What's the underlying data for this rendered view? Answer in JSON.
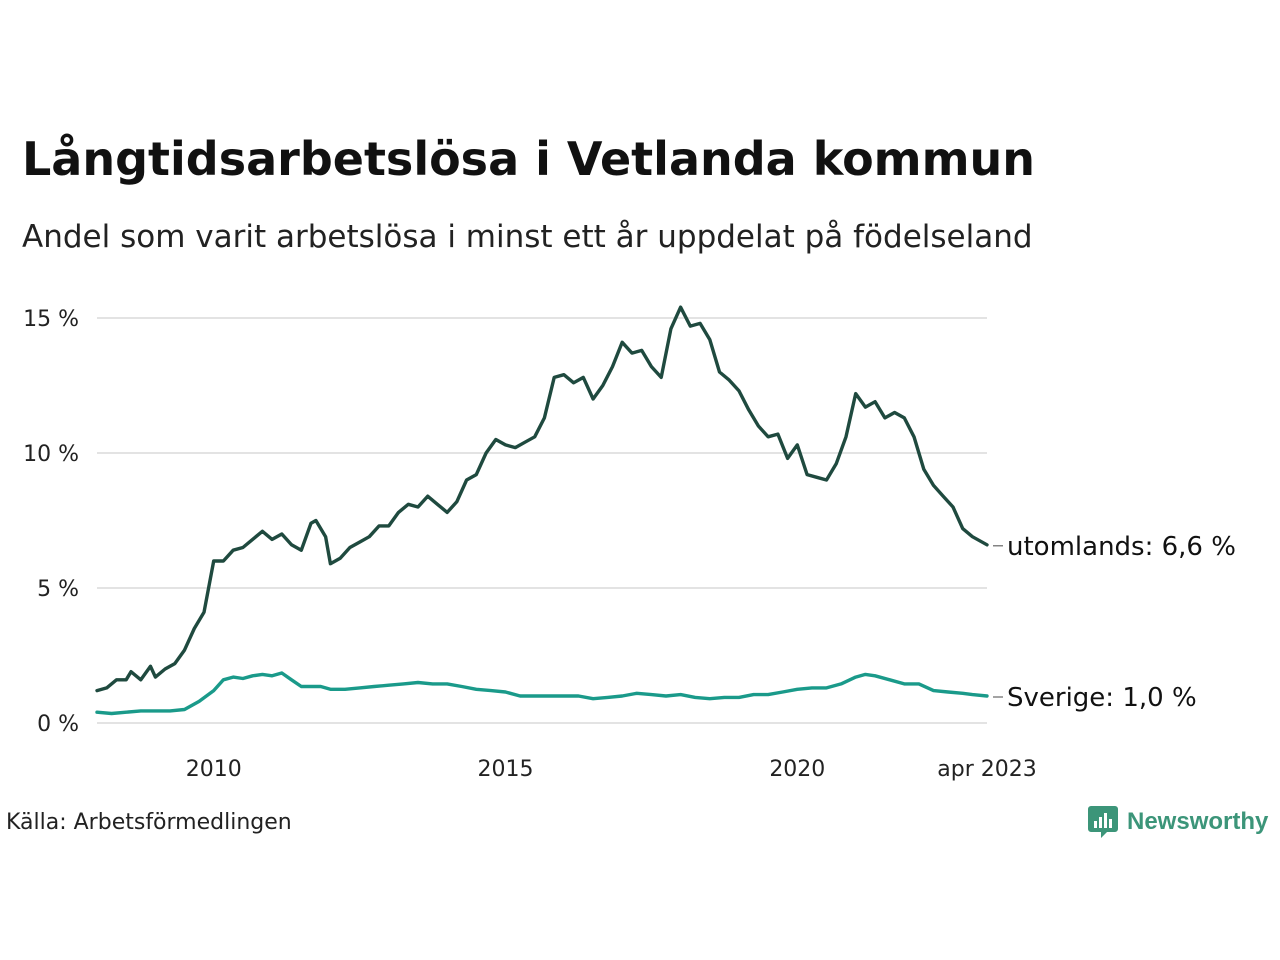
{
  "header": {
    "title": "Långtidsarbetslösa i Vetlanda kommun",
    "subtitle": "Andel som varit arbetslösa i minst ett år uppdelat på födelseland"
  },
  "footer": {
    "source": "Källa: Arbetsförmedlingen",
    "brand": "Newsworthy"
  },
  "colors": {
    "utomlands": "#1f4a3f",
    "sverige": "#1a9a8a",
    "grid": "#e3e3e3",
    "brand": "#3c9579"
  },
  "chart_data": {
    "type": "line",
    "title": "Långtidsarbetslösa i Vetlanda kommun",
    "subtitle": "Andel som varit arbetslösa i minst ett år uppdelat på födelseland",
    "xlabel": "",
    "ylabel": "",
    "x_range": [
      "2008-01",
      "2023-04"
    ],
    "ylim": [
      0,
      15
    ],
    "y_ticks": [
      0,
      5,
      10,
      15
    ],
    "y_tick_labels": [
      "0 %",
      "5 %",
      "10 %",
      "15 %"
    ],
    "x_ticks": [
      "2010-01",
      "2015-01",
      "2020-01",
      "2023-04"
    ],
    "x_tick_labels": [
      "2010",
      "2015",
      "2020",
      "apr 2023"
    ],
    "grid": "horizontal",
    "series": [
      {
        "key": "utomlands",
        "end_label": "utomlands: 6,6 %",
        "points": [
          [
            "2008-01",
            1.2
          ],
          [
            "2008-03",
            1.3
          ],
          [
            "2008-05",
            1.6
          ],
          [
            "2008-07",
            1.6
          ],
          [
            "2008-08",
            1.9
          ],
          [
            "2008-10",
            1.6
          ],
          [
            "2008-12",
            2.1
          ],
          [
            "2009-01",
            1.7
          ],
          [
            "2009-03",
            2.0
          ],
          [
            "2009-05",
            2.2
          ],
          [
            "2009-07",
            2.7
          ],
          [
            "2009-09",
            3.5
          ],
          [
            "2009-11",
            4.1
          ],
          [
            "2010-01",
            6.0
          ],
          [
            "2010-03",
            6.0
          ],
          [
            "2010-05",
            6.4
          ],
          [
            "2010-07",
            6.5
          ],
          [
            "2010-09",
            6.8
          ],
          [
            "2010-11",
            7.1
          ],
          [
            "2011-01",
            6.8
          ],
          [
            "2011-03",
            7.0
          ],
          [
            "2011-05",
            6.6
          ],
          [
            "2011-07",
            6.4
          ],
          [
            "2011-09",
            7.4
          ],
          [
            "2011-10",
            7.5
          ],
          [
            "2011-12",
            6.9
          ],
          [
            "2012-01",
            5.9
          ],
          [
            "2012-03",
            6.1
          ],
          [
            "2012-05",
            6.5
          ],
          [
            "2012-07",
            6.7
          ],
          [
            "2012-09",
            6.9
          ],
          [
            "2012-11",
            7.3
          ],
          [
            "2013-01",
            7.3
          ],
          [
            "2013-03",
            7.8
          ],
          [
            "2013-05",
            8.1
          ],
          [
            "2013-07",
            8.0
          ],
          [
            "2013-09",
            8.4
          ],
          [
            "2013-11",
            8.1
          ],
          [
            "2014-01",
            7.8
          ],
          [
            "2014-03",
            8.2
          ],
          [
            "2014-05",
            9.0
          ],
          [
            "2014-07",
            9.2
          ],
          [
            "2014-09",
            10.0
          ],
          [
            "2014-11",
            10.5
          ],
          [
            "2015-01",
            10.3
          ],
          [
            "2015-03",
            10.2
          ],
          [
            "2015-05",
            10.4
          ],
          [
            "2015-07",
            10.6
          ],
          [
            "2015-09",
            11.3
          ],
          [
            "2015-11",
            12.8
          ],
          [
            "2016-01",
            12.9
          ],
          [
            "2016-03",
            12.6
          ],
          [
            "2016-05",
            12.8
          ],
          [
            "2016-07",
            12.0
          ],
          [
            "2016-09",
            12.5
          ],
          [
            "2016-11",
            13.2
          ],
          [
            "2017-01",
            14.1
          ],
          [
            "2017-03",
            13.7
          ],
          [
            "2017-05",
            13.8
          ],
          [
            "2017-07",
            13.2
          ],
          [
            "2017-09",
            12.8
          ],
          [
            "2017-11",
            14.6
          ],
          [
            "2018-01",
            15.4
          ],
          [
            "2018-03",
            14.7
          ],
          [
            "2018-05",
            14.8
          ],
          [
            "2018-07",
            14.2
          ],
          [
            "2018-09",
            13.0
          ],
          [
            "2018-11",
            12.7
          ],
          [
            "2019-01",
            12.3
          ],
          [
            "2019-03",
            11.6
          ],
          [
            "2019-05",
            11.0
          ],
          [
            "2019-07",
            10.6
          ],
          [
            "2019-09",
            10.7
          ],
          [
            "2019-11",
            9.8
          ],
          [
            "2020-01",
            10.3
          ],
          [
            "2020-03",
            9.2
          ],
          [
            "2020-05",
            9.1
          ],
          [
            "2020-07",
            9.0
          ],
          [
            "2020-09",
            9.6
          ],
          [
            "2020-11",
            10.6
          ],
          [
            "2021-01",
            12.2
          ],
          [
            "2021-03",
            11.7
          ],
          [
            "2021-05",
            11.9
          ],
          [
            "2021-07",
            11.3
          ],
          [
            "2021-09",
            11.5
          ],
          [
            "2021-11",
            11.3
          ],
          [
            "2022-01",
            10.6
          ],
          [
            "2022-03",
            9.4
          ],
          [
            "2022-05",
            8.8
          ],
          [
            "2022-07",
            8.4
          ],
          [
            "2022-09",
            8.0
          ],
          [
            "2022-11",
            7.2
          ],
          [
            "2023-01",
            6.9
          ],
          [
            "2023-04",
            6.6
          ]
        ]
      },
      {
        "key": "sverige",
        "end_label": "Sverige: 1,0 %",
        "points": [
          [
            "2008-01",
            0.4
          ],
          [
            "2008-04",
            0.35
          ],
          [
            "2008-07",
            0.4
          ],
          [
            "2008-10",
            0.45
          ],
          [
            "2009-01",
            0.45
          ],
          [
            "2009-04",
            0.45
          ],
          [
            "2009-07",
            0.5
          ],
          [
            "2009-10",
            0.8
          ],
          [
            "2010-01",
            1.2
          ],
          [
            "2010-03",
            1.6
          ],
          [
            "2010-05",
            1.7
          ],
          [
            "2010-07",
            1.65
          ],
          [
            "2010-09",
            1.75
          ],
          [
            "2010-11",
            1.8
          ],
          [
            "2011-01",
            1.75
          ],
          [
            "2011-03",
            1.85
          ],
          [
            "2011-05",
            1.6
          ],
          [
            "2011-07",
            1.35
          ],
          [
            "2011-09",
            1.35
          ],
          [
            "2011-11",
            1.35
          ],
          [
            "2012-01",
            1.25
          ],
          [
            "2012-04",
            1.25
          ],
          [
            "2012-07",
            1.3
          ],
          [
            "2012-10",
            1.35
          ],
          [
            "2013-01",
            1.4
          ],
          [
            "2013-04",
            1.45
          ],
          [
            "2013-07",
            1.5
          ],
          [
            "2013-10",
            1.45
          ],
          [
            "2014-01",
            1.45
          ],
          [
            "2014-04",
            1.35
          ],
          [
            "2014-07",
            1.25
          ],
          [
            "2014-10",
            1.2
          ],
          [
            "2015-01",
            1.15
          ],
          [
            "2015-04",
            1.0
          ],
          [
            "2015-07",
            1.0
          ],
          [
            "2015-10",
            1.0
          ],
          [
            "2016-01",
            1.0
          ],
          [
            "2016-04",
            1.0
          ],
          [
            "2016-07",
            0.9
          ],
          [
            "2016-10",
            0.95
          ],
          [
            "2017-01",
            1.0
          ],
          [
            "2017-04",
            1.1
          ],
          [
            "2017-07",
            1.05
          ],
          [
            "2017-10",
            1.0
          ],
          [
            "2018-01",
            1.05
          ],
          [
            "2018-04",
            0.95
          ],
          [
            "2018-07",
            0.9
          ],
          [
            "2018-10",
            0.95
          ],
          [
            "2019-01",
            0.95
          ],
          [
            "2019-04",
            1.05
          ],
          [
            "2019-07",
            1.05
          ],
          [
            "2019-10",
            1.15
          ],
          [
            "2020-01",
            1.25
          ],
          [
            "2020-04",
            1.3
          ],
          [
            "2020-07",
            1.3
          ],
          [
            "2020-10",
            1.45
          ],
          [
            "2021-01",
            1.7
          ],
          [
            "2021-03",
            1.8
          ],
          [
            "2021-05",
            1.75
          ],
          [
            "2021-08",
            1.6
          ],
          [
            "2021-11",
            1.45
          ],
          [
            "2022-02",
            1.45
          ],
          [
            "2022-05",
            1.2
          ],
          [
            "2022-08",
            1.15
          ],
          [
            "2022-11",
            1.1
          ],
          [
            "2023-01",
            1.05
          ],
          [
            "2023-04",
            1.0
          ]
        ]
      }
    ]
  }
}
